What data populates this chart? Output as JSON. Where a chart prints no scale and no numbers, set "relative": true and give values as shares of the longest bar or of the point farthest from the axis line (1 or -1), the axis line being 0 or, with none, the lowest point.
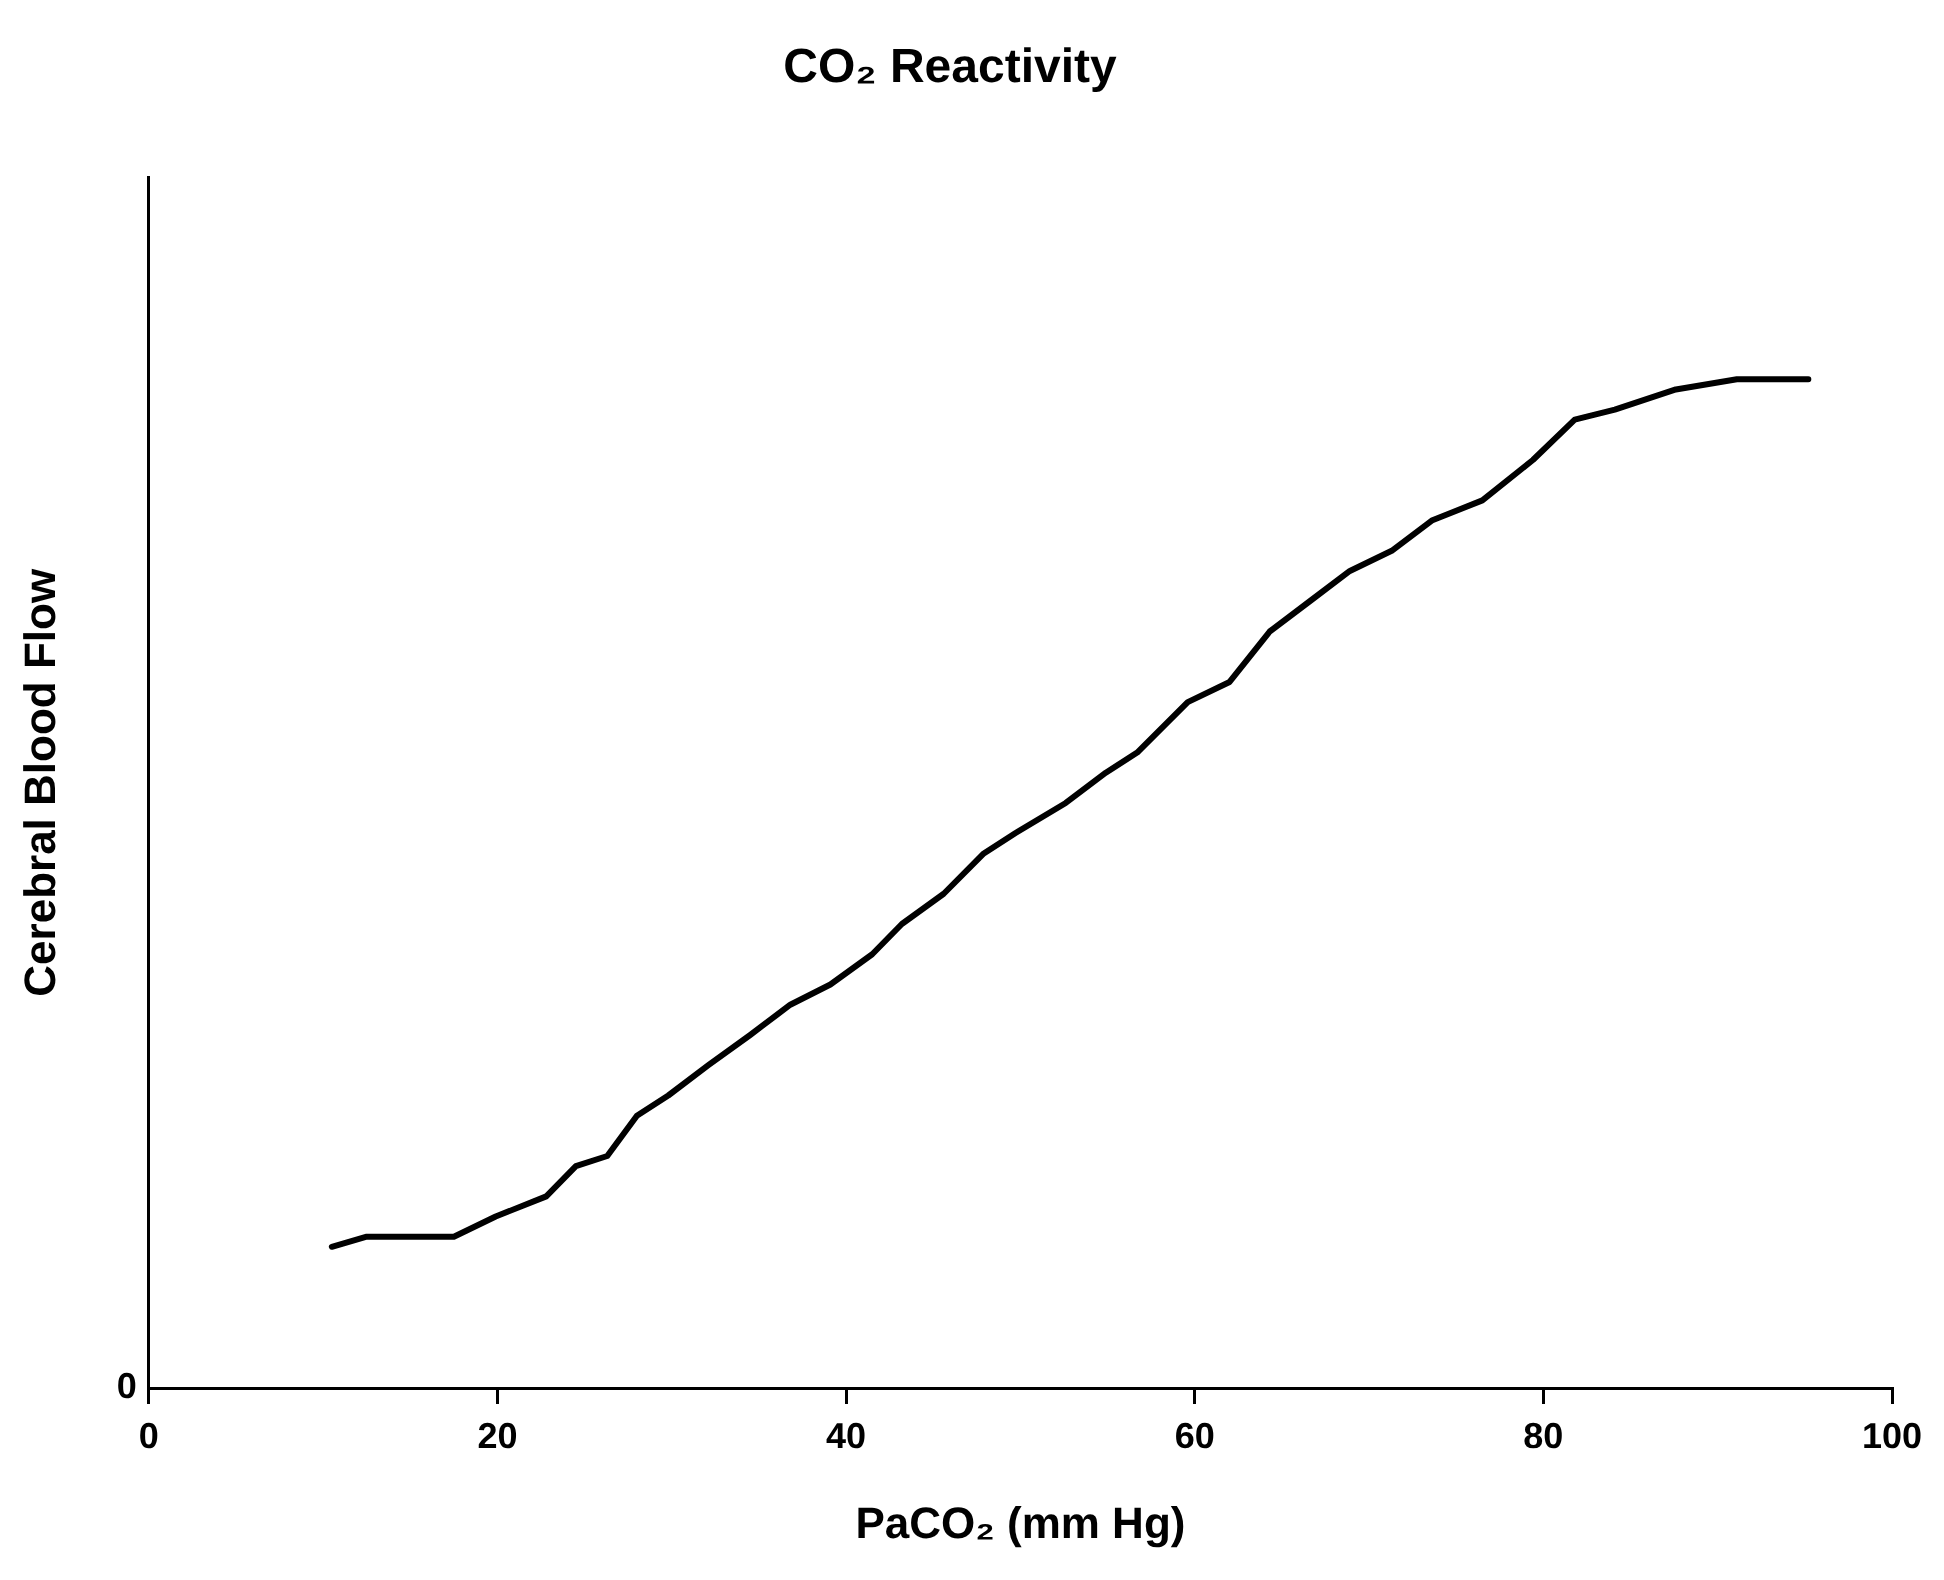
{
  "chart_data": {
    "type": "line",
    "title": "CO₂ Reactivity",
    "xlabel": "PaCO₂ (mm Hg)",
    "ylabel": "Cerebral Blood Flow",
    "relative": true,
    "annotations": [
      "0"
    ],
    "xlim": [
      0,
      100
    ],
    "xticks": [
      0,
      20,
      40,
      60,
      80,
      100
    ],
    "grid": false,
    "legend": false,
    "marker": "none",
    "line_style": "solid",
    "series": [
      {
        "color": "#000000",
        "x": [
          10.5,
          12.5,
          17.5,
          19.9,
          22.8,
          24.5,
          26.3,
          28.0,
          29.8,
          32.1,
          34.5,
          36.8,
          39.1,
          41.5,
          43.2,
          45.6,
          47.9,
          49.7,
          52.6,
          54.9,
          56.7,
          59.6,
          62.0,
          64.3,
          66.6,
          68.9,
          71.3,
          73.6,
          76.5,
          79.4,
          81.8,
          84.1,
          87.6,
          91.1,
          95.2
        ],
        "values": [
          0.14,
          0.15,
          0.15,
          0.17,
          0.19,
          0.22,
          0.23,
          0.27,
          0.29,
          0.32,
          0.35,
          0.38,
          0.4,
          0.43,
          0.46,
          0.49,
          0.53,
          0.55,
          0.58,
          0.61,
          0.63,
          0.68,
          0.7,
          0.75,
          0.78,
          0.81,
          0.83,
          0.86,
          0.88,
          0.92,
          0.96,
          0.97,
          0.99,
          1.0,
          1.0
        ]
      }
    ]
  }
}
